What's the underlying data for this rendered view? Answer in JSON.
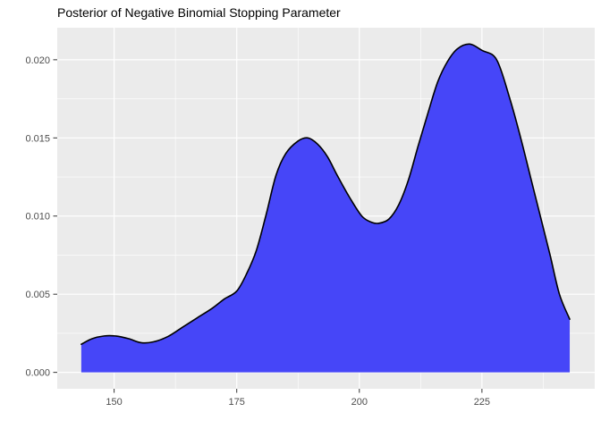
{
  "colors": {
    "background": "#FFFFFF",
    "panel": "#EBEBEB",
    "grid_major": "#FFFFFF",
    "grid_minor": "#FFFFFF",
    "area_fill": "#4646F8",
    "curve_stroke": "#000000",
    "tick_mark": "#333333",
    "tick_label": "#4D4D4D",
    "title": "#000000"
  },
  "chart_data": {
    "type": "area",
    "title": "Posterior of Negative Binomial Stopping Parameter",
    "xlabel": "",
    "ylabel": "",
    "legend": "none",
    "grid": {
      "major": true,
      "minor": true
    },
    "xlim": [
      138.4,
      248.0
    ],
    "ylim": [
      -0.00105,
      0.02205
    ],
    "x_ticks": {
      "values": [
        150,
        175,
        200,
        225
      ],
      "labels": [
        "150",
        "175",
        "200",
        "225"
      ]
    },
    "y_ticks": {
      "values": [
        0,
        0.005,
        0.01,
        0.015,
        0.02
      ],
      "labels": [
        "0.000",
        "0.005",
        "0.010",
        "0.015",
        "0.020"
      ]
    },
    "series": [
      {
        "name": "posterior-density",
        "x": [
          143.3,
          145.5,
          148,
          150.5,
          153,
          155.5,
          158,
          161,
          164,
          167,
          170,
          172.5,
          175,
          177,
          179,
          181,
          183,
          185,
          187.5,
          189.5,
          191.5,
          193.5,
          195.5,
          198,
          200.5,
          202.5,
          204,
          206,
          208,
          210,
          212,
          214,
          216,
          218,
          220,
          222.5,
          225,
          228,
          230.7,
          232.9,
          234.9,
          236.9,
          238.9,
          240.8,
          242.9
        ],
        "y": [
          0.0018,
          0.00215,
          0.00233,
          0.00232,
          0.00215,
          0.0019,
          0.00195,
          0.0023,
          0.0029,
          0.0035,
          0.0041,
          0.0047,
          0.0052,
          0.0063,
          0.0078,
          0.0101,
          0.0126,
          0.014,
          0.0148,
          0.015,
          0.0146,
          0.0138,
          0.0126,
          0.0112,
          0.01,
          0.0096,
          0.00954,
          0.0098,
          0.0107,
          0.0123,
          0.0145,
          0.0166,
          0.0186,
          0.0199,
          0.0207,
          0.021,
          0.0206,
          0.02,
          0.0175,
          0.015,
          0.0125,
          0.01,
          0.0075,
          0.005,
          0.0034
        ],
        "peaks": [
          {
            "x": 189.5,
            "y": 0.015
          },
          {
            "x": 222.5,
            "y": 0.021
          }
        ],
        "trough": {
          "x": 204,
          "y": 0.0095
        }
      }
    ]
  }
}
